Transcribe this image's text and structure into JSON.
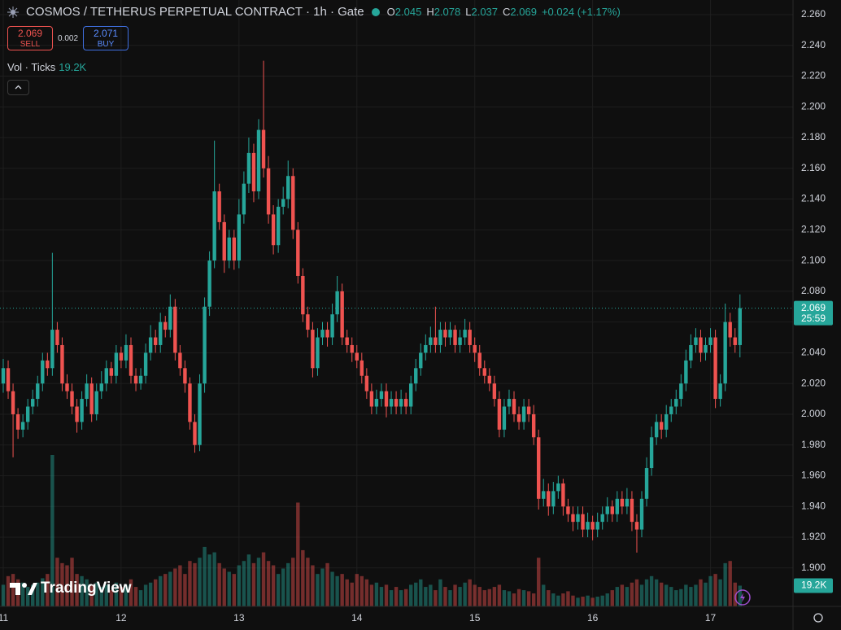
{
  "chart_data": {
    "type": "candlestick",
    "title": "COSMOS / TETHERUS PERPETUAL CONTRACT · 1h · Gate",
    "ohlc_letters": [
      "O",
      "H",
      "L",
      "C"
    ],
    "change": "+0.024 (+1.17%)",
    "sell_label": "SELL",
    "buy_label": "BUY",
    "buy_price": "2.071",
    "spread": "0.002",
    "volume_title": "Vol · Ticks",
    "last_volume_label": "19.2K",
    "countdown": "25:59",
    "logo": "TradingView",
    "up_color": "#26a69a",
    "down_color": "#ef5350",
    "grid": true,
    "xlim": [
      -0.66,
      160.8
    ],
    "xticks": [
      {
        "value": 0,
        "label": "11"
      },
      {
        "value": 24,
        "label": "12"
      },
      {
        "value": 48,
        "label": "13"
      },
      {
        "value": 72,
        "label": "14"
      },
      {
        "value": 96,
        "label": "15"
      },
      {
        "value": 120,
        "label": "16"
      },
      {
        "value": 144,
        "label": "17"
      }
    ],
    "ylim": [
      1.875,
      2.2695
    ],
    "yticks": [
      {
        "value": 1.9,
        "label": "1.900"
      },
      {
        "value": 1.92,
        "label": "1.920"
      },
      {
        "value": 1.94,
        "label": "1.940"
      },
      {
        "value": 1.96,
        "label": "1.960"
      },
      {
        "value": 1.98,
        "label": "1.980"
      },
      {
        "value": 2.0,
        "label": "2.000"
      },
      {
        "value": 2.02,
        "label": "2.020"
      },
      {
        "value": 2.04,
        "label": "2.040"
      },
      {
        "value": 2.06,
        "label": "2.060"
      },
      {
        "value": 2.08,
        "label": "2.080"
      },
      {
        "value": 2.1,
        "label": "2.100"
      },
      {
        "value": 2.12,
        "label": "2.120"
      },
      {
        "value": 2.14,
        "label": "2.140"
      },
      {
        "value": 2.16,
        "label": "2.160"
      },
      {
        "value": 2.18,
        "label": "2.180"
      },
      {
        "value": 2.2,
        "label": "2.200"
      },
      {
        "value": 2.22,
        "label": "2.220"
      },
      {
        "value": 2.24,
        "label": "2.240"
      },
      {
        "value": 2.26,
        "label": "2.260"
      }
    ],
    "open": [
      2.02,
      2.03,
      2.015,
      2.0,
      1.99,
      1.995,
      2.005,
      2.01,
      2.02,
      2.035,
      2.03,
      2.055,
      2.045,
      2.02,
      2.015,
      2.005,
      1.995,
      2.01,
      2.02,
      2.0,
      2.015,
      2.02,
      2.03,
      2.025,
      2.04,
      2.035,
      2.045,
      2.025,
      2.02,
      2.025,
      2.04,
      2.05,
      2.045,
      2.06,
      2.055,
      2.07,
      2.04,
      2.03,
      2.02,
      1.995,
      1.98,
      2.02,
      2.07,
      2.1,
      2.145,
      2.125,
      2.1,
      2.115,
      2.1,
      2.13,
      2.15,
      2.17,
      2.145,
      2.185,
      2.16,
      2.13,
      2.11,
      2.135,
      2.14,
      2.155,
      2.12,
      2.09,
      2.065,
      2.055,
      2.03,
      2.05,
      2.055,
      2.05,
      2.065,
      2.08,
      2.05,
      2.045,
      2.04,
      2.035,
      2.025,
      2.015,
      2.005,
      2.01,
      2.015,
      2.005,
      2.01,
      2.005,
      2.01,
      2.005,
      2.02,
      2.03,
      2.04,
      2.045,
      2.05,
      2.045,
      2.055,
      2.05,
      2.055,
      2.045,
      2.05,
      2.055,
      2.045,
      2.04,
      2.03,
      2.025,
      2.02,
      2.01,
      1.99,
      2.005,
      2.01,
      2.0,
      1.995,
      2.005,
      2.0,
      1.985,
      1.945,
      1.95,
      1.94,
      1.95,
      1.955,
      1.94,
      1.935,
      1.93,
      1.935,
      1.925,
      1.93,
      1.925,
      1.93,
      1.935,
      1.94,
      1.935,
      1.945,
      1.94,
      1.945,
      1.93,
      1.925,
      1.945,
      1.965,
      1.985,
      1.995,
      1.99,
      2.0,
      2.005,
      2.01,
      2.02,
      2.035,
      2.045,
      2.05,
      2.04,
      2.045,
      2.05,
      2.01,
      2.02,
      2.06,
      2.05,
      2.045
    ],
    "high": [
      2.036,
      2.035,
      2.02,
      2.004,
      2.0,
      2.01,
      2.016,
      2.025,
      2.04,
      2.04,
      2.105,
      2.06,
      2.05,
      2.026,
      2.02,
      2.01,
      2.015,
      2.026,
      2.024,
      2.02,
      2.028,
      2.035,
      2.034,
      2.045,
      2.044,
      2.052,
      2.05,
      2.03,
      2.03,
      2.046,
      2.058,
      2.055,
      2.066,
      2.064,
      2.078,
      2.075,
      2.045,
      2.035,
      2.024,
      2.0,
      2.026,
      2.076,
      2.106,
      2.178,
      2.15,
      2.13,
      2.12,
      2.12,
      2.14,
      2.158,
      2.18,
      2.176,
      2.192,
      2.23,
      2.168,
      2.136,
      2.14,
      2.148,
      2.165,
      2.16,
      2.125,
      2.095,
      2.07,
      2.06,
      2.056,
      2.06,
      2.06,
      2.072,
      2.09,
      2.085,
      2.055,
      2.05,
      2.045,
      2.04,
      2.03,
      2.02,
      2.016,
      2.02,
      2.02,
      2.015,
      2.015,
      2.016,
      2.014,
      2.025,
      2.036,
      2.046,
      2.052,
      2.057,
      2.07,
      2.06,
      2.06,
      2.06,
      2.058,
      2.055,
      2.062,
      2.06,
      2.05,
      2.045,
      2.035,
      2.03,
      2.025,
      2.015,
      2.01,
      2.016,
      2.015,
      2.005,
      2.01,
      2.01,
      2.006,
      1.99,
      1.958,
      1.955,
      1.956,
      1.96,
      1.958,
      1.945,
      1.94,
      1.94,
      1.94,
      1.936,
      1.934,
      1.936,
      1.94,
      1.946,
      1.944,
      1.95,
      1.95,
      1.952,
      1.95,
      1.935,
      1.95,
      1.972,
      1.992,
      2.0,
      2.0,
      2.006,
      2.01,
      2.016,
      2.026,
      2.042,
      2.052,
      2.056,
      2.055,
      2.05,
      2.056,
      2.055,
      2.026,
      2.072,
      2.066,
      2.056,
      2.078
    ],
    "low": [
      2.014,
      2.01,
      1.972,
      1.984,
      1.985,
      1.99,
      2.0,
      2.005,
      2.015,
      2.025,
      2.025,
      2.04,
      2.015,
      2.01,
      2.0,
      1.988,
      1.99,
      2.005,
      1.995,
      1.996,
      2.01,
      2.015,
      2.02,
      2.02,
      2.03,
      2.03,
      2.02,
      2.015,
      2.016,
      2.02,
      2.035,
      2.04,
      2.04,
      2.05,
      2.05,
      2.035,
      2.025,
      2.014,
      1.99,
      1.975,
      1.976,
      2.014,
      2.064,
      2.095,
      2.12,
      2.092,
      2.095,
      2.094,
      2.095,
      2.124,
      2.144,
      2.138,
      2.14,
      2.154,
      2.124,
      2.104,
      2.105,
      2.13,
      2.134,
      2.114,
      2.085,
      2.06,
      2.05,
      2.024,
      2.025,
      2.045,
      2.044,
      2.045,
      2.06,
      2.045,
      2.04,
      2.034,
      2.03,
      2.02,
      2.01,
      2.0,
      2.0,
      2.005,
      1.998,
      2.0,
      2.0,
      2.0,
      2.0,
      2.0,
      2.015,
      2.025,
      2.035,
      2.04,
      2.04,
      2.04,
      2.044,
      2.045,
      2.04,
      2.04,
      2.045,
      2.04,
      2.034,
      2.025,
      2.02,
      2.015,
      2.005,
      1.985,
      1.985,
      2.0,
      1.995,
      1.99,
      1.99,
      1.995,
      1.98,
      1.938,
      1.94,
      1.934,
      1.935,
      1.945,
      1.934,
      1.93,
      1.924,
      1.925,
      1.92,
      1.92,
      1.918,
      1.92,
      1.925,
      1.93,
      1.93,
      1.93,
      1.935,
      1.935,
      1.924,
      1.91,
      1.92,
      1.94,
      1.96,
      1.98,
      1.984,
      1.985,
      1.995,
      2.0,
      2.005,
      2.015,
      2.03,
      2.04,
      2.034,
      2.035,
      2.04,
      2.004,
      2.005,
      2.015,
      2.044,
      2.04,
      2.037
    ],
    "close": [
      2.03,
      2.015,
      2.0,
      1.99,
      1.995,
      2.005,
      2.01,
      2.02,
      2.035,
      2.03,
      2.055,
      2.045,
      2.02,
      2.015,
      2.005,
      1.995,
      2.01,
      2.02,
      2.0,
      2.015,
      2.02,
      2.03,
      2.025,
      2.04,
      2.035,
      2.045,
      2.025,
      2.02,
      2.025,
      2.04,
      2.05,
      2.045,
      2.06,
      2.055,
      2.07,
      2.04,
      2.03,
      2.02,
      1.995,
      1.98,
      2.02,
      2.07,
      2.1,
      2.145,
      2.125,
      2.1,
      2.115,
      2.1,
      2.13,
      2.15,
      2.17,
      2.145,
      2.185,
      2.16,
      2.13,
      2.11,
      2.135,
      2.14,
      2.155,
      2.12,
      2.09,
      2.065,
      2.055,
      2.03,
      2.05,
      2.055,
      2.05,
      2.065,
      2.08,
      2.05,
      2.045,
      2.04,
      2.035,
      2.025,
      2.015,
      2.005,
      2.01,
      2.015,
      2.005,
      2.01,
      2.005,
      2.01,
      2.005,
      2.02,
      2.03,
      2.04,
      2.045,
      2.05,
      2.045,
      2.055,
      2.05,
      2.055,
      2.045,
      2.05,
      2.055,
      2.045,
      2.04,
      2.03,
      2.025,
      2.02,
      2.01,
      1.99,
      2.005,
      2.01,
      2.0,
      1.995,
      2.005,
      2.0,
      1.985,
      1.945,
      1.95,
      1.94,
      1.95,
      1.955,
      1.94,
      1.935,
      1.93,
      1.935,
      1.925,
      1.93,
      1.925,
      1.93,
      1.935,
      1.94,
      1.935,
      1.945,
      1.94,
      1.945,
      1.93,
      1.925,
      1.945,
      1.965,
      1.985,
      1.995,
      1.99,
      2.0,
      2.005,
      2.01,
      2.02,
      2.035,
      2.045,
      2.05,
      2.04,
      2.045,
      2.05,
      2.01,
      2.02,
      2.06,
      2.05,
      2.045,
      2.069
    ],
    "volume": [
      20000,
      28000,
      30000,
      25000,
      22000,
      18000,
      20000,
      22000,
      26000,
      30000,
      140000,
      45000,
      40000,
      38000,
      45000,
      30000,
      28000,
      25000,
      20000,
      22000,
      18000,
      20000,
      15000,
      22000,
      18000,
      20000,
      25000,
      18000,
      15000,
      20000,
      22000,
      25000,
      28000,
      30000,
      32000,
      35000,
      38000,
      30000,
      42000,
      40000,
      45000,
      55000,
      48000,
      50000,
      40000,
      35000,
      32000,
      30000,
      38000,
      42000,
      48000,
      40000,
      45000,
      50000,
      42000,
      38000,
      30000,
      35000,
      40000,
      45000,
      96000,
      52000,
      45000,
      38000,
      30000,
      35000,
      40000,
      32000,
      28000,
      30000,
      25000,
      22000,
      30000,
      28000,
      25000,
      20000,
      22000,
      18000,
      20000,
      15000,
      18000,
      15000,
      16000,
      20000,
      22000,
      25000,
      18000,
      20000,
      15000,
      25000,
      18000,
      15000,
      20000,
      18000,
      22000,
      25000,
      20000,
      18000,
      15000,
      16000,
      18000,
      20000,
      15000,
      14000,
      12000,
      16000,
      15000,
      14000,
      12000,
      45000,
      20000,
      15000,
      12000,
      10000,
      12000,
      14000,
      10000,
      8000,
      9000,
      10000,
      8000,
      9000,
      10000,
      12000,
      15000,
      18000,
      20000,
      18000,
      22000,
      25000,
      20000,
      25000,
      28000,
      25000,
      22000,
      20000,
      18000,
      15000,
      16000,
      20000,
      18000,
      20000,
      25000,
      22000,
      28000,
      30000,
      25000,
      40000,
      42000,
      22000,
      19200
    ]
  }
}
